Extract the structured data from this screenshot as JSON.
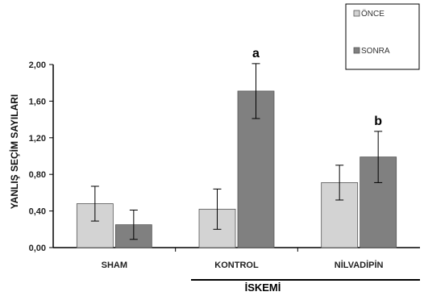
{
  "chart_data": {
    "type": "bar",
    "ylabel": "YANLIŞ SEÇİM SAYILARI",
    "ylim": [
      0,
      2.0
    ],
    "yticks": [
      "0,00",
      "0,40",
      "0,80",
      "1,20",
      "1,60",
      "2,00"
    ],
    "ytick_values": [
      0,
      0.4,
      0.8,
      1.2,
      1.6,
      2.0
    ],
    "categories": [
      "SHAM",
      "KONTROL",
      "NİLVADİPİN"
    ],
    "group_label": "İSKEMİ",
    "legend_position": "top-right",
    "grid": false,
    "series": [
      {
        "name": "ÖNCE",
        "color": "#d3d3d3",
        "values": [
          0.48,
          0.42,
          0.71
        ],
        "errors": [
          0.19,
          0.22,
          0.19
        ]
      },
      {
        "name": "SONRA",
        "color": "#808080",
        "values": [
          0.25,
          1.71,
          0.99
        ],
        "errors": [
          0.16,
          0.3,
          0.28
        ]
      }
    ],
    "annotations": [
      {
        "category": "KONTROL",
        "series": "SONRA",
        "text": "a"
      },
      {
        "category": "NİLVADİPİN",
        "series": "SONRA",
        "text": "b"
      }
    ]
  }
}
